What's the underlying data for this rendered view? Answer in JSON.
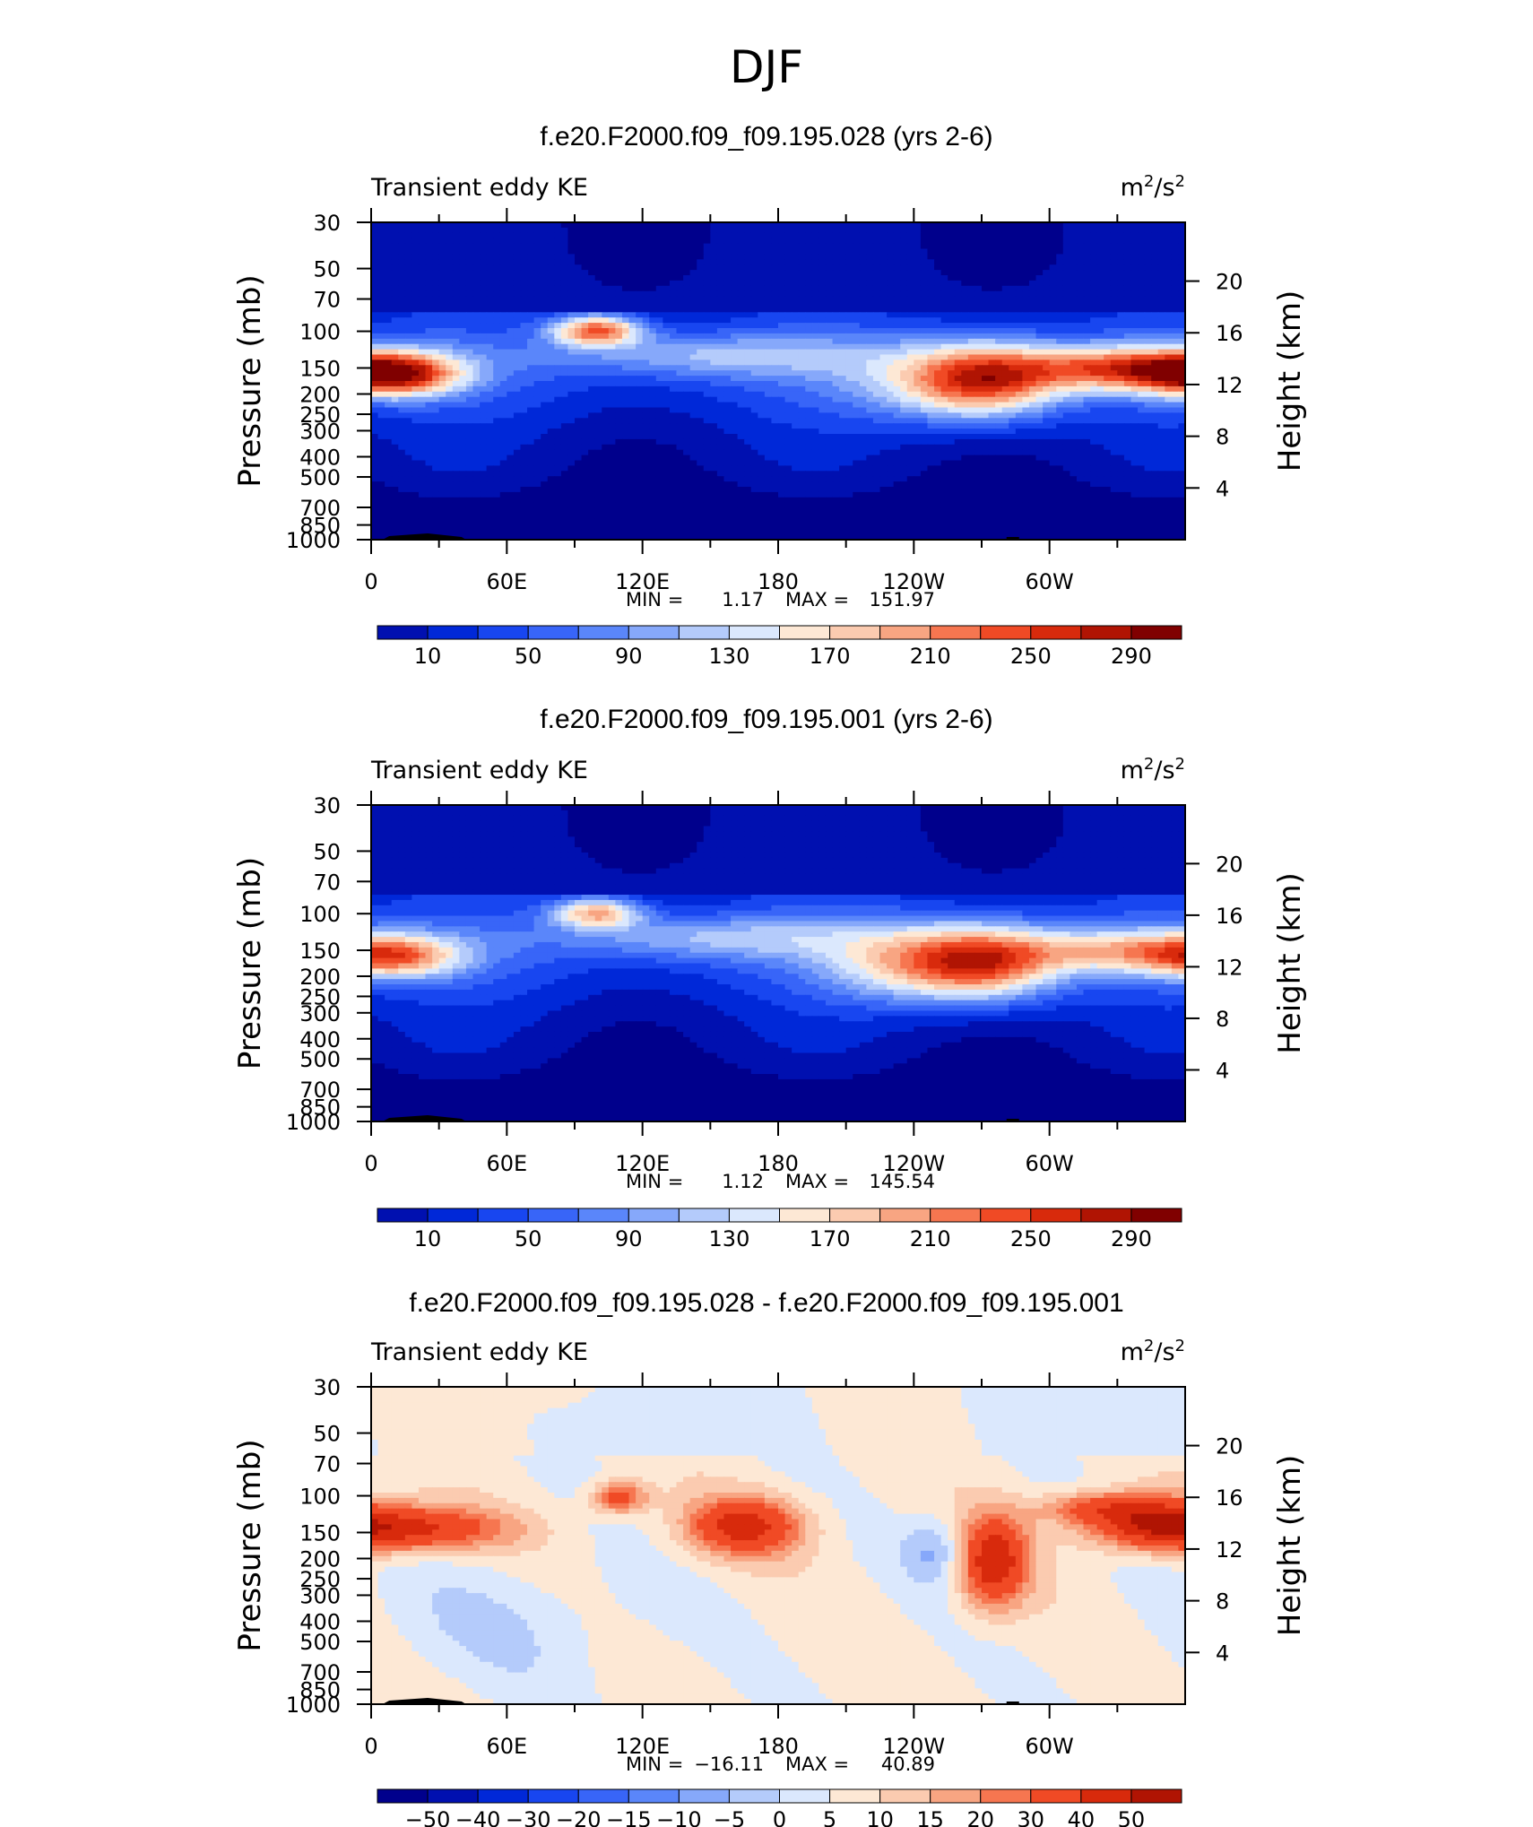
{
  "season_title": "DJF",
  "chart_data": [
    {
      "type": "heatmap",
      "title": "f.e20.F2000.f09_f09.195.028 (yrs 2-6)",
      "left_label": "Transient eddy KE",
      "units": "m²/s²",
      "units_base": "m",
      "units_mid": "/s",
      "units_sup": "2",
      "ylabel": "Pressure (mb)",
      "ylabel_right": "Height (km)",
      "x_ticks": [
        "0",
        "60E",
        "120E",
        "180",
        "120W",
        "60W"
      ],
      "x_tick_values": [
        0,
        60,
        120,
        180,
        240,
        300
      ],
      "xlim": [
        0,
        360
      ],
      "y_ticks": [
        "30",
        "50",
        "70",
        "100",
        "150",
        "200",
        "250",
        "300",
        "400",
        "500",
        "700",
        "850",
        "1000"
      ],
      "y_tick_values": [
        30,
        50,
        70,
        100,
        150,
        200,
        250,
        300,
        400,
        500,
        700,
        850,
        1000
      ],
      "ylim": [
        1000,
        30
      ],
      "right_ticks": [
        "20",
        "16",
        "12",
        "8",
        "4"
      ],
      "right_tick_values": [
        20,
        16,
        12,
        8,
        4
      ],
      "stats_min_label": "MIN =",
      "stats_min": "1.17",
      "stats_max_label": "MAX =",
      "stats_max": "151.97",
      "colorbar_labels": [
        "10",
        "50",
        "90",
        "130",
        "170",
        "210",
        "250",
        "290"
      ],
      "colorbar_colors": [
        "#00008c",
        "#0010b0",
        "#0028d8",
        "#1846f0",
        "#3865f8",
        "#5a86fa",
        "#86a8fa",
        "#b4cbfb",
        "#dbe8fd",
        "#fde8d5",
        "#fbcbb0",
        "#f8a582",
        "#f67650",
        "#f04a25",
        "#d82a0c",
        "#b01403",
        "#800000"
      ],
      "field": "ke"
    },
    {
      "type": "heatmap",
      "title": "f.e20.F2000.f09_f09.195.001 (yrs 2-6)",
      "left_label": "Transient eddy KE",
      "units": "m²/s²",
      "units_base": "m",
      "units_mid": "/s",
      "units_sup": "2",
      "ylabel": "Pressure (mb)",
      "ylabel_right": "Height (km)",
      "x_ticks": [
        "0",
        "60E",
        "120E",
        "180",
        "120W",
        "60W"
      ],
      "x_tick_values": [
        0,
        60,
        120,
        180,
        240,
        300
      ],
      "xlim": [
        0,
        360
      ],
      "y_ticks": [
        "30",
        "50",
        "70",
        "100",
        "150",
        "200",
        "250",
        "300",
        "400",
        "500",
        "700",
        "850",
        "1000"
      ],
      "y_tick_values": [
        30,
        50,
        70,
        100,
        150,
        200,
        250,
        300,
        400,
        500,
        700,
        850,
        1000
      ],
      "ylim": [
        1000,
        30
      ],
      "right_ticks": [
        "20",
        "16",
        "12",
        "8",
        "4"
      ],
      "right_tick_values": [
        20,
        16,
        12,
        8,
        4
      ],
      "stats_min_label": "MIN =",
      "stats_min": "1.12",
      "stats_max_label": "MAX =",
      "stats_max": "145.54",
      "colorbar_labels": [
        "10",
        "50",
        "90",
        "130",
        "170",
        "210",
        "250",
        "290"
      ],
      "colorbar_colors": [
        "#00008c",
        "#0010b0",
        "#0028d8",
        "#1846f0",
        "#3865f8",
        "#5a86fa",
        "#86a8fa",
        "#b4cbfb",
        "#dbe8fd",
        "#fde8d5",
        "#fbcbb0",
        "#f8a582",
        "#f67650",
        "#f04a25",
        "#d82a0c",
        "#b01403",
        "#800000"
      ],
      "field": "ke2"
    },
    {
      "type": "heatmap",
      "title": "f.e20.F2000.f09_f09.195.028 - f.e20.F2000.f09_f09.195.001",
      "left_label": "Transient eddy KE",
      "units": "m²/s²",
      "units_base": "m",
      "units_mid": "/s",
      "units_sup": "2",
      "ylabel": "Pressure (mb)",
      "ylabel_right": "Height (km)",
      "x_ticks": [
        "0",
        "60E",
        "120E",
        "180",
        "120W",
        "60W"
      ],
      "x_tick_values": [
        0,
        60,
        120,
        180,
        240,
        300
      ],
      "xlim": [
        0,
        360
      ],
      "y_ticks": [
        "30",
        "50",
        "70",
        "100",
        "150",
        "200",
        "250",
        "300",
        "400",
        "500",
        "700",
        "850",
        "1000"
      ],
      "y_tick_values": [
        30,
        50,
        70,
        100,
        150,
        200,
        250,
        300,
        400,
        500,
        700,
        850,
        1000
      ],
      "ylim": [
        1000,
        30
      ],
      "right_ticks": [
        "20",
        "16",
        "12",
        "8",
        "4"
      ],
      "right_tick_values": [
        20,
        16,
        12,
        8,
        4
      ],
      "stats_min_label": "MIN =",
      "stats_min": "−16.11",
      "stats_max_label": "MAX =",
      "stats_max": "40.89",
      "colorbar_labels": [
        "−50",
        "−40",
        "−30",
        "−20",
        "−15",
        "−10",
        "−5",
        "0",
        "5",
        "10",
        "15",
        "20",
        "30",
        "40",
        "50"
      ],
      "colorbar_colors": [
        "#00008c",
        "#0010b0",
        "#0028d8",
        "#1846f0",
        "#3865f8",
        "#5a86fa",
        "#86a8fa",
        "#b4cbfb",
        "#dbe8fd",
        "#fde8d5",
        "#fbcbb0",
        "#f8a582",
        "#f67650",
        "#f04a25",
        "#d82a0c",
        "#b01403",
        "#800000"
      ],
      "field": "diff"
    }
  ]
}
